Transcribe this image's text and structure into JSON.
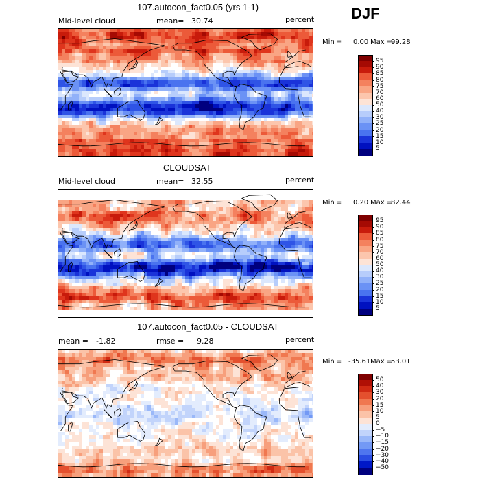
{
  "season": "DJF",
  "colors": {
    "pct_palette": [
      "#00007f",
      "#0011c0",
      "#1a33d9",
      "#2f54e6",
      "#4a73ef",
      "#6b92f5",
      "#91b1f9",
      "#b7cdfb",
      "#dbe7fd",
      "#ffffff",
      "#fde3d6",
      "#fcc6ad",
      "#f9a584",
      "#f4815e",
      "#ec5a39",
      "#df351d",
      "#c81b0b",
      "#a50a03",
      "#7f0000"
    ],
    "diff_palette": [
      "#00007f",
      "#0018c8",
      "#2a4de3",
      "#4f76ef",
      "#7399f5",
      "#9ab8f9",
      "#c2d4fb",
      "#e3ecfd",
      "#ffffff",
      "#fde3d6",
      "#fbc3a8",
      "#f79f7c",
      "#f07850",
      "#e4502e",
      "#d02a13",
      "#b01005",
      "#7f0000"
    ]
  },
  "chart_data": [
    {
      "type": "heatmap",
      "title": "107.autocon_fact0.05 (yrs 1-1)",
      "left_label": "Mid-level cloud",
      "mean_label": "mean=",
      "mean_value": "30.74",
      "units": "percent",
      "min_label": "Min =",
      "min_value": "0.00",
      "max_label": "Max =",
      "max_value": "99.28",
      "colorbar_labels": [
        "95",
        "90",
        "85",
        "80",
        "75",
        "70",
        "60",
        "50",
        "40",
        "30",
        "25",
        "20",
        "15",
        "10",
        "5"
      ],
      "palette": "pct_palette"
    },
    {
      "type": "heatmap",
      "title": "CLOUDSAT",
      "left_label": "Mid-level cloud",
      "mean_label": "mean=",
      "mean_value": "32.55",
      "units": "percent",
      "min_label": "Min =",
      "min_value": "0.20",
      "max_label": "Max =",
      "max_value": "82.44",
      "colorbar_labels": [
        "95",
        "90",
        "85",
        "80",
        "75",
        "70",
        "60",
        "50",
        "40",
        "30",
        "25",
        "20",
        "15",
        "10",
        "5"
      ],
      "palette": "pct_palette"
    },
    {
      "type": "heatmap",
      "title": "107.autocon_fact0.05 - CLOUDSAT",
      "left_label": "mean =",
      "left_value": "-1.82",
      "mean_label": "rmse =",
      "mean_value": "9.28",
      "units": "percent",
      "min_label": "Min =",
      "min_value": "-35.61",
      "max_label": "Max =",
      "max_value": "53.01",
      "colorbar_labels": [
        "50",
        "40",
        "30",
        "20",
        "15",
        "10",
        "5",
        "0",
        "−5",
        "−10",
        "−15",
        "−20",
        "−30",
        "−40",
        "−50"
      ],
      "palette": "diff_palette"
    }
  ]
}
